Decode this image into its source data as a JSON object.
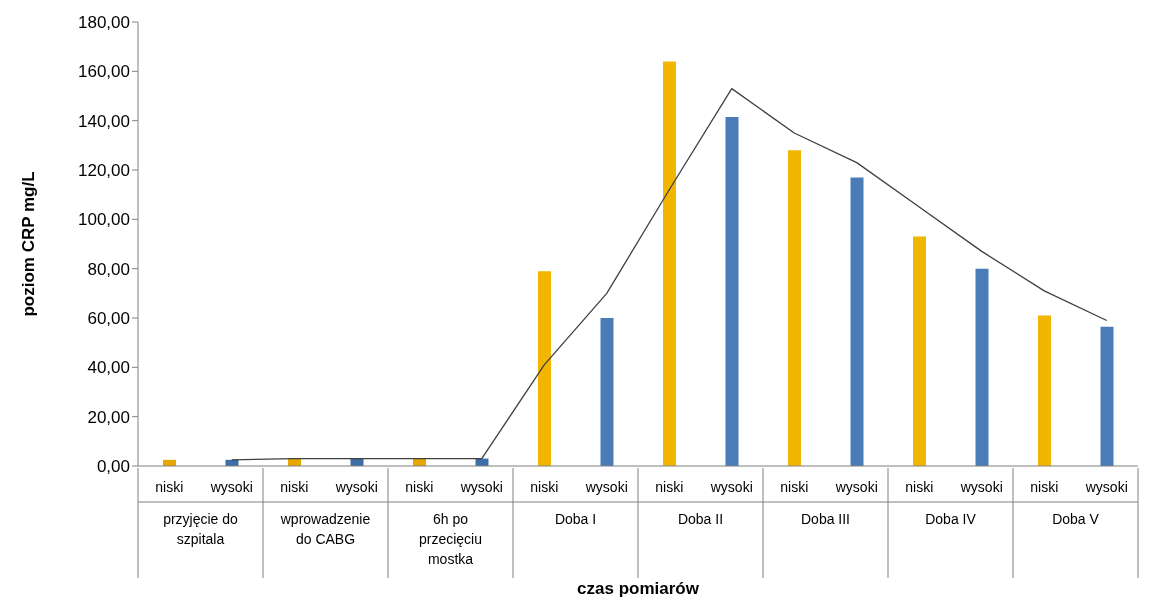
{
  "chart_data": {
    "type": "bar",
    "xlabel": "czas pomiarów",
    "ylabel": "poziom CRP mg/L",
    "categories": [
      "niski",
      "wysoki",
      "niski",
      "wysoki",
      "niski",
      "wysoki",
      "niski",
      "wysoki",
      "niski",
      "wysoki",
      "niski",
      "wysoki",
      "niski",
      "wysoki",
      "niski",
      "wysoki"
    ],
    "annotations": [
      "przyjęcie do szpitala",
      "wprowadzenie do CABG",
      "6h po przecięciu mostka",
      "Doba I",
      "Doba II",
      "Doba III",
      "Doba IV",
      "Doba V"
    ],
    "series": [
      {
        "colors": [
          "#e6a800",
          "#3d6ea8",
          "#e6a800",
          "#3d6ea8",
          "#e6a800",
          "#3d6ea8",
          "#f2b600",
          "#4a7cb8",
          "#f2b600",
          "#4a7cb8",
          "#f2b600",
          "#4a7cb8",
          "#f2b600",
          "#4a7cb8",
          "#f2b600",
          "#4a7cb8"
        ],
        "values": [
          2.5,
          2.5,
          3,
          3,
          3,
          3,
          79,
          60,
          164,
          141.5,
          128,
          117,
          93,
          80,
          61,
          56.5
        ]
      },
      {
        "type": "line",
        "color": "#404040",
        "values": [
          null,
          2.5,
          3,
          3,
          3,
          3,
          41,
          70,
          112,
          153,
          135,
          123,
          105,
          87,
          71,
          59
        ]
      }
    ],
    "ylim": [
      0,
      180
    ],
    "yticks": [
      {
        "value": 0,
        "label": "0,00"
      },
      {
        "value": 20,
        "label": "20,00"
      },
      {
        "value": 40,
        "label": "40,00"
      },
      {
        "value": 60,
        "label": "60,00"
      },
      {
        "value": 80,
        "label": "80,00"
      },
      {
        "value": 100,
        "label": "100,00"
      },
      {
        "value": 120,
        "label": "120,00"
      },
      {
        "value": 140,
        "label": "140,00"
      },
      {
        "value": 160,
        "label": "160,00"
      },
      {
        "value": 180,
        "label": "180,00"
      }
    ],
    "grid": false,
    "legend": false,
    "marker": "none"
  }
}
